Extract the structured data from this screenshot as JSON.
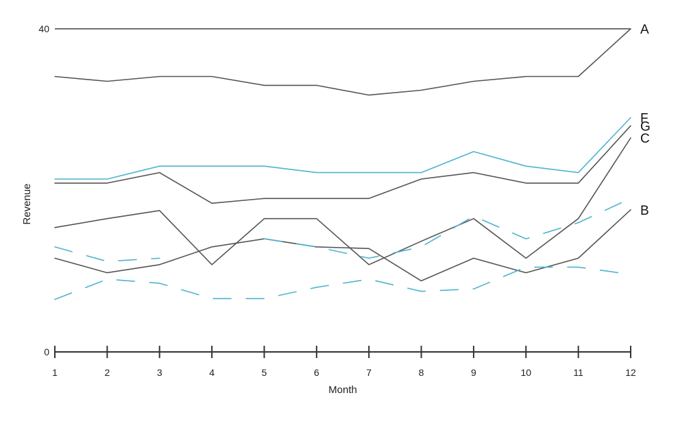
{
  "chart_data": {
    "type": "line",
    "title": "",
    "xlabel": "Month",
    "ylabel": "Revenue",
    "x": [
      1,
      2,
      3,
      4,
      5,
      6,
      7,
      8,
      9,
      10,
      11,
      12
    ],
    "xlim": [
      1,
      12
    ],
    "ylim": [
      0,
      40
    ],
    "y_tick_labels": [
      "0",
      "40"
    ],
    "grid": false,
    "legend": "none",
    "series": [
      {
        "name": "A",
        "color": "#555555",
        "dashed": false,
        "values": [
          34.1,
          33.5,
          34.1,
          34.1,
          33.0,
          33.0,
          31.8,
          32.4,
          33.5,
          34.1,
          34.1,
          40.0
        ]
      },
      {
        "name": "F",
        "color": "#4fb3cf",
        "dashed": false,
        "values": [
          21.4,
          21.4,
          23.0,
          23.0,
          23.0,
          22.2,
          22.2,
          22.2,
          24.8,
          23.0,
          22.2,
          29.0
        ]
      },
      {
        "name": "G",
        "color": "#555555",
        "dashed": false,
        "values": [
          20.9,
          20.9,
          22.2,
          18.4,
          19.0,
          19.0,
          19.0,
          21.4,
          22.2,
          20.9,
          20.9,
          28.0
        ]
      },
      {
        "name": "C",
        "color": "#555555",
        "dashed": false,
        "values": [
          15.4,
          16.5,
          17.5,
          10.8,
          16.5,
          16.5,
          10.8,
          13.7,
          16.5,
          11.6,
          16.5,
          26.5
        ]
      },
      {
        "name": "B",
        "color": "#555555",
        "dashed": false,
        "values": [
          11.6,
          9.8,
          10.8,
          13.0,
          14.0,
          13.0,
          12.8,
          8.8,
          11.6,
          9.8,
          11.6,
          17.6
        ]
      },
      {
        "color": "#4fb3cf",
        "dashed": true,
        "values": [
          13.0,
          11.2,
          11.6,
          null,
          14.0,
          13.0,
          11.6,
          13.0,
          16.8,
          14.0,
          16.0,
          19.0
        ]
      },
      {
        "color": "#4fb3cf",
        "dashed": true,
        "values": [
          6.5,
          9.0,
          8.5,
          6.6,
          6.6,
          8.0,
          9.0,
          7.5,
          7.8,
          10.5,
          10.5,
          9.6
        ]
      }
    ]
  }
}
